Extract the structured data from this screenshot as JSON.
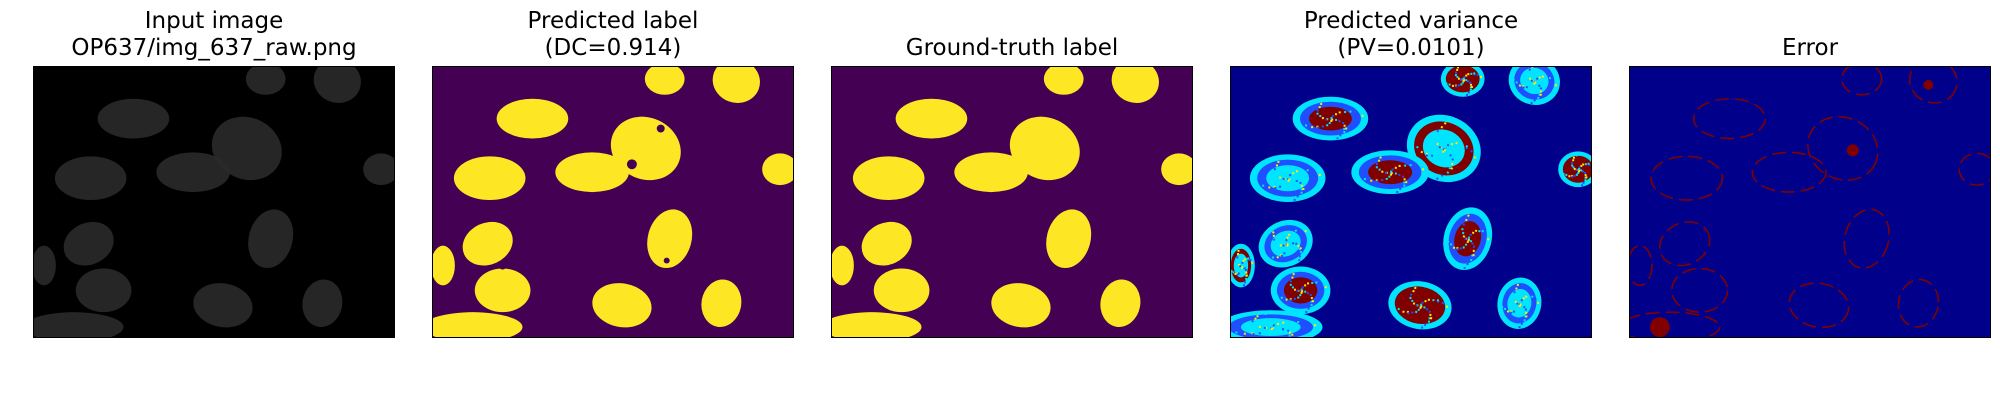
{
  "panels": [
    {
      "title_line1": "Input image",
      "title_line2": "OP637/img_637_raw.png"
    },
    {
      "title_line1": "Predicted label",
      "title_line2": "(DC=0.914)"
    },
    {
      "title_line1": "",
      "title_line2": "Ground-truth label"
    },
    {
      "title_line1": "Predicted variance",
      "title_line2": "(PV=0.0101)"
    },
    {
      "title_line1": "",
      "title_line2": "Error"
    }
  ],
  "colors": {
    "input_background": "#000000",
    "input_nucleus": "#2a2a2a",
    "label_background": "#440154",
    "label_foreground": "#fde725",
    "jet_low": "#00008b",
    "jet_high": "#800000",
    "jet_mid_cyan": "#00e5ff",
    "jet_mid_yellow": "#ffea00",
    "jet_mid_blue": "#1f4fff"
  }
}
